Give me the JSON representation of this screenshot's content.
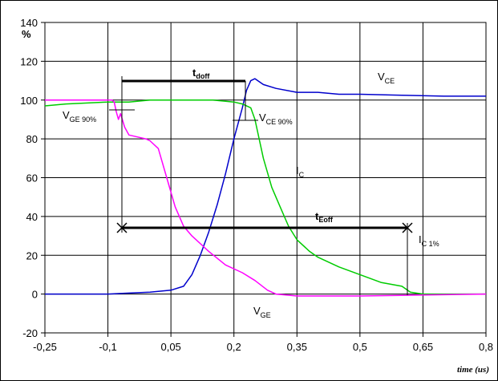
{
  "chart_data": {
    "type": "line",
    "title": "",
    "xlabel": "time (us)",
    "ylabel": "%",
    "xlim": [
      -0.25,
      0.8
    ],
    "ylim": [
      -20,
      140
    ],
    "x_tick_labels": [
      "-0,25",
      "-0,1",
      "0,05",
      "0,2",
      "0,35",
      "0,5",
      "0,65",
      "0,8"
    ],
    "x_ticks": [
      -0.25,
      -0.1,
      0.05,
      0.2,
      0.35,
      0.5,
      0.65,
      0.8
    ],
    "y_tick_labels": [
      "-20",
      "0",
      "20",
      "40",
      "60",
      "80",
      "100",
      "120",
      "140"
    ],
    "y_ticks": [
      -20,
      0,
      20,
      40,
      60,
      80,
      100,
      120,
      140
    ],
    "grid": true,
    "series": [
      {
        "name": "VCE",
        "color": "#0000cc",
        "x": [
          -0.25,
          -0.2,
          -0.1,
          -0.05,
          0.0,
          0.05,
          0.08,
          0.1,
          0.12,
          0.14,
          0.16,
          0.18,
          0.2,
          0.22,
          0.23,
          0.24,
          0.25,
          0.27,
          0.3,
          0.35,
          0.4,
          0.45,
          0.5,
          0.6,
          0.7,
          0.8
        ],
        "y": [
          0,
          0,
          0,
          0.5,
          1,
          2,
          4,
          10,
          20,
          32,
          46,
          62,
          80,
          96,
          105,
          110,
          111,
          108,
          106,
          104,
          104,
          103,
          103,
          102.5,
          102,
          102
        ]
      },
      {
        "name": "IC",
        "color": "#00cc00",
        "x": [
          -0.25,
          -0.2,
          -0.1,
          -0.05,
          0.0,
          0.05,
          0.1,
          0.15,
          0.2,
          0.22,
          0.24,
          0.25,
          0.27,
          0.29,
          0.31,
          0.33,
          0.35,
          0.38,
          0.4,
          0.45,
          0.5,
          0.55,
          0.6,
          0.62,
          0.65,
          0.7,
          0.8
        ],
        "y": [
          97,
          98,
          99,
          99,
          100,
          100,
          100,
          100,
          99,
          98,
          96,
          90,
          70,
          55,
          45,
          35,
          28,
          22,
          19,
          14,
          10,
          6,
          4,
          1,
          0,
          0,
          0
        ]
      },
      {
        "name": "VGE",
        "color": "#ff00ff",
        "x": [
          -0.25,
          -0.2,
          -0.1,
          -0.09,
          -0.085,
          -0.08,
          -0.075,
          -0.07,
          -0.06,
          -0.05,
          -0.03,
          -0.01,
          0.0,
          0.02,
          0.04,
          0.06,
          0.08,
          0.1,
          0.14,
          0.18,
          0.22,
          0.25,
          0.28,
          0.3,
          0.35,
          0.4,
          0.5,
          0.65,
          0.8
        ],
        "y": [
          100,
          100,
          100,
          100,
          99,
          94,
          90,
          93,
          86,
          82,
          81,
          80,
          79,
          75,
          60,
          45,
          35,
          30,
          22,
          15,
          11,
          7,
          2,
          0,
          -1,
          -1,
          -1,
          -0.5,
          0
        ]
      }
    ],
    "annotations": [
      {
        "text": "t",
        "sub": "doff",
        "bold": true
      },
      {
        "text": "t",
        "sub": "Eoff",
        "bold": true
      },
      {
        "text": "V",
        "sub": "CE"
      },
      {
        "text": "V",
        "sub": "GE 90%"
      },
      {
        "text": "V",
        "sub": "CE 90%"
      },
      {
        "text": "I",
        "sub": "C"
      },
      {
        "text": "I",
        "sub": "C 1%"
      },
      {
        "text": "V",
        "sub": "GE"
      }
    ]
  }
}
